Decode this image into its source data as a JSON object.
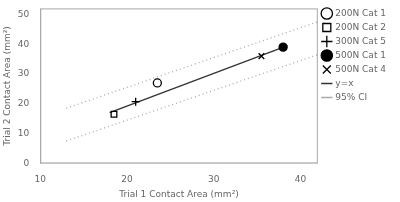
{
  "chart_data": {
    "type": "scatter",
    "xlabel": "Trial 1 Contact Area (mm²)",
    "ylabel": "Trial 2 Contact Area (mm²)",
    "xlim": [
      10,
      42
    ],
    "ylim": [
      0,
      52
    ],
    "xticks": [
      10,
      20,
      30,
      40
    ],
    "yticks": [
      0,
      10,
      20,
      30,
      40,
      50
    ],
    "grid": false,
    "legend": "right",
    "series": [
      {
        "name": "200N Cat 1",
        "x": [
          23.5
        ],
        "values": [
          27.0
        ],
        "marker": "open_circle",
        "color": "#000000"
      },
      {
        "name": "200N Cat 2",
        "x": [
          18.5
        ],
        "values": [
          16.5
        ],
        "marker": "open_square",
        "color": "#000000"
      },
      {
        "name": "300N Cat 5",
        "x": [
          21.0
        ],
        "values": [
          20.7
        ],
        "marker": "plus",
        "color": "#000000"
      },
      {
        "name": "500N Cat 1",
        "x": [
          38.0
        ],
        "values": [
          39.0
        ],
        "marker": "filled_circle",
        "color": "#000000"
      },
      {
        "name": "500N Cat 4",
        "x": [
          35.5
        ],
        "values": [
          36.0
        ],
        "marker": "x",
        "color": "#000000"
      },
      {
        "name": "y=x",
        "type": "line",
        "x": [
          18.0,
          38.5
        ],
        "values": [
          17.0,
          39.5
        ],
        "color": "#333333",
        "line_style": "solid"
      },
      {
        "name": "95% CI",
        "type": "line",
        "x": [
          13.0,
          42.0
        ],
        "values": [
          18.5,
          47.5
        ],
        "color": "#aaaaaa",
        "line_style": "dotted"
      },
      {
        "name": "95% CI",
        "type": "line",
        "x": [
          13.0,
          42.0
        ],
        "values": [
          7.5,
          36.5
        ],
        "color": "#aaaaaa",
        "line_style": "dotted"
      }
    ]
  }
}
